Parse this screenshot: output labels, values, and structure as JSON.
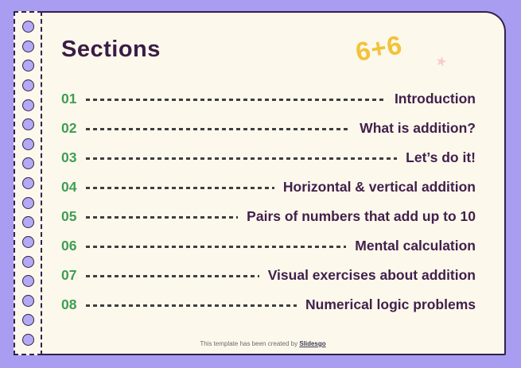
{
  "slide": {
    "title": "Sections",
    "decor": {
      "equation": "6+6",
      "star_icon": "star",
      "hole_count": 17
    },
    "sections": [
      {
        "num": "01",
        "label": "Introduction"
      },
      {
        "num": "02",
        "label": "What is addition?"
      },
      {
        "num": "03",
        "label": "Let’s do it!"
      },
      {
        "num": "04",
        "label": "Horizontal & vertical addition"
      },
      {
        "num": "05",
        "label": "Pairs of numbers that add up to 10"
      },
      {
        "num": "06",
        "label": "Mental calculation"
      },
      {
        "num": "07",
        "label": "Visual exercises about addition"
      },
      {
        "num": "08",
        "label": "Numerical logic problems"
      }
    ],
    "footer": {
      "text": "This template has been created by ",
      "link": "Slidesgo"
    },
    "colors": {
      "background": "#a89df0",
      "card": "#fdf8ec",
      "border_ink": "#33214a",
      "title": "#3b1c45",
      "number_green": "#3f9e53",
      "equation_yellow": "#f2c338",
      "star_pink": "#f5cec7",
      "leader_dash": "#3f3f3f"
    }
  }
}
